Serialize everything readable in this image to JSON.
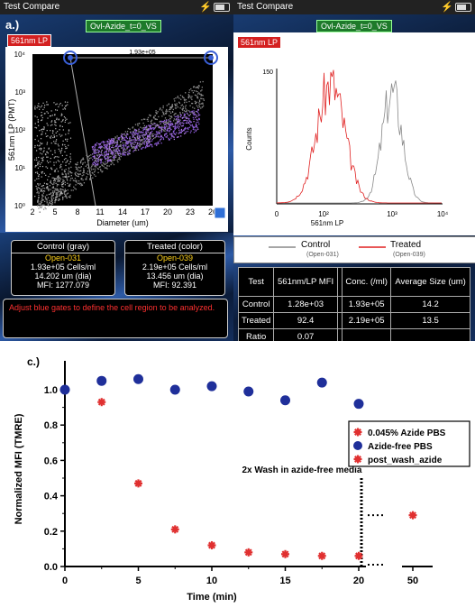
{
  "left_panel": {
    "window_title": "Test Compare",
    "sample_name": "Ovl-Azide_t=0_VS",
    "panel_letter": "a.)",
    "channel_tag": "561nm LP",
    "y_axis_label": "561nm LP (PMT)",
    "x_axis_label": "Diameter (um)",
    "x_ticks": [
      "2",
      "5",
      "8",
      "11",
      "14",
      "17",
      "20",
      "23",
      "26"
    ],
    "y_ticks": [
      "10⁰",
      "10¹",
      "10²",
      "10³",
      "10⁴"
    ],
    "gate_readout": "1.93e+05",
    "control_box": {
      "title": "Control (gray)",
      "file": "Open-031",
      "cells": "1.93e+05 Cells/ml",
      "dia": "14.202 um (dia)",
      "mfi": "MFI: 1277.079"
    },
    "treated_box": {
      "title": "Treated (color)",
      "file": "Open-039",
      "cells": "2.19e+05 Cells/ml",
      "dia": "13.456 um (dia)",
      "mfi": "MFI: 92.391"
    },
    "message": "Adjust blue gates to define the cell region to be analyzed."
  },
  "right_panel": {
    "window_title": "Test Compare",
    "sample_name": "Ovl-Azide_t=0_VS",
    "channel_tag": "561nm LP",
    "y_axis_label": "Counts",
    "y_tick": "150",
    "x_axis_label": "561nm LP",
    "x_ticks": [
      "0",
      "10²",
      "10³",
      "10⁴"
    ],
    "legend": [
      {
        "name": "Control",
        "sub": "(Open-031)",
        "color": "#888888"
      },
      {
        "name": "Treated",
        "sub": "(Open-039)",
        "color": "#e02020"
      }
    ],
    "table": {
      "headers": [
        "Test",
        "561nm/LP MFI",
        "",
        "Conc. (/ml)",
        "Average Size (um)"
      ],
      "rows": [
        [
          "Control",
          "1.28e+03",
          "",
          "1.93e+05",
          "14.2"
        ],
        [
          "Treated",
          "92.4",
          "",
          "2.19e+05",
          "13.5"
        ],
        [
          "Ratio",
          "0.07",
          "",
          "",
          ""
        ]
      ]
    }
  },
  "chart_data": {
    "type": "scatter",
    "panel_letter": "c.)",
    "xlabel": "Time (min)",
    "ylabel": "Normalized MFI (TMRE)",
    "x_ticks": [
      "0",
      "5",
      "10",
      "15",
      "20",
      "50"
    ],
    "y_ticks": [
      "0.0",
      "0.2",
      "0.4",
      "0.6",
      "0.8",
      "1.0"
    ],
    "ylim": [
      0,
      1.07
    ],
    "annotation": "2x Wash in azide-free media",
    "legend_position": "right",
    "series": [
      {
        "name": "0.045% Azide PBS",
        "marker": "asterisk",
        "color": "#e03030",
        "points": [
          [
            0,
            1.0
          ],
          [
            2.5,
            0.93
          ],
          [
            5,
            0.47
          ],
          [
            7.5,
            0.21
          ],
          [
            10,
            0.12
          ],
          [
            12.5,
            0.08
          ],
          [
            15,
            0.07
          ],
          [
            17.5,
            0.06
          ],
          [
            20,
            0.06
          ]
        ]
      },
      {
        "name": "Azide-free PBS",
        "marker": "circle",
        "color": "#1f2f9a",
        "points": [
          [
            0,
            1.0
          ],
          [
            2.5,
            1.05
          ],
          [
            5,
            1.06
          ],
          [
            7.5,
            1.0
          ],
          [
            10,
            1.02
          ],
          [
            12.5,
            0.99
          ],
          [
            15,
            0.94
          ],
          [
            17.5,
            1.04
          ],
          [
            20,
            0.92
          ]
        ]
      },
      {
        "name": "post_wash_azide",
        "marker": "asterisk",
        "color": "#e03030",
        "points": [
          [
            50,
            0.29
          ]
        ]
      }
    ]
  }
}
